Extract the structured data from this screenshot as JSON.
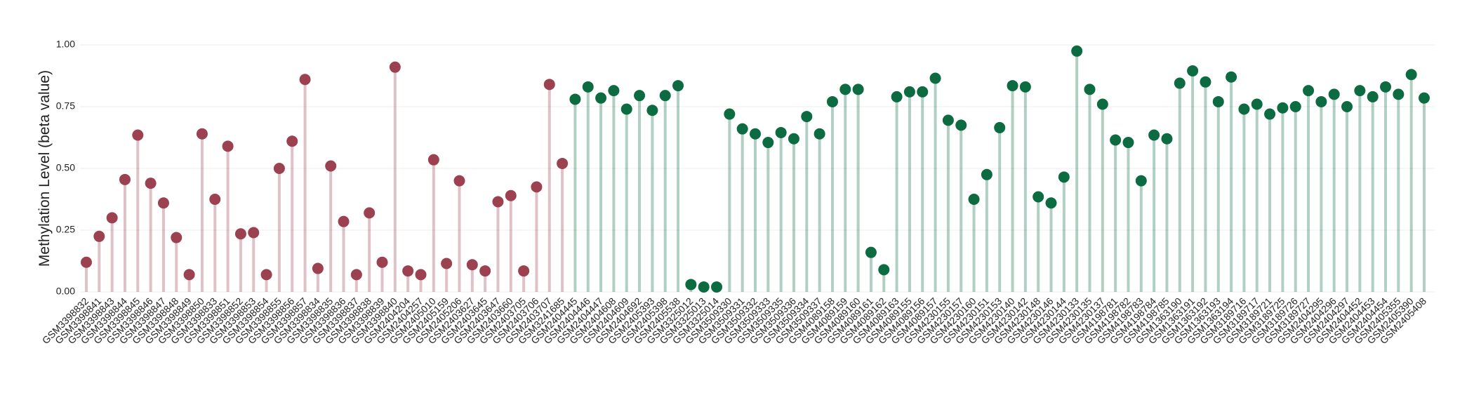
{
  "chart_data": {
    "type": "lollipop",
    "y_label": "Methylation Level (beta value)",
    "categories": [
      "GSM3398832",
      "GSM3398841",
      "GSM3398843",
      "GSM3398844",
      "GSM3398845",
      "GSM3398846",
      "GSM3398847",
      "GSM3398848",
      "GSM3398849",
      "GSM3398850",
      "GSM3398833",
      "GSM3398851",
      "GSM3398852",
      "GSM3398853",
      "GSM3398854",
      "GSM3398855",
      "GSM3398856",
      "GSM3398857",
      "GSM3398834",
      "GSM3398835",
      "GSM3398836",
      "GSM3398837",
      "GSM3398838",
      "GSM3398839",
      "GSM3398840",
      "GSM2404204",
      "GSM2404257",
      "GSM2405010",
      "GSM2405159",
      "GSM2405206",
      "GSM2403627",
      "GSM2403645",
      "GSM2403647",
      "GSM2403660",
      "GSM2403705",
      "GSM2403706",
      "GSM2403707",
      "GSM3241685",
      "GSM2404445",
      "GSM2404446",
      "GSM2404447",
      "GSM2404608",
      "GSM2404609",
      "GSM2404692",
      "GSM2405393",
      "GSM2405398",
      "GSM2405538",
      "GSM3325012",
      "GSM3325013",
      "GSM3325014",
      "GSM3509330",
      "GSM3509331",
      "GSM3509332",
      "GSM3509333",
      "GSM3509335",
      "GSM3509336",
      "GSM3509334",
      "GSM3509337",
      "GSM4089158",
      "GSM4089159",
      "GSM4089160",
      "GSM4089161",
      "GSM4089162",
      "GSM4089163",
      "GSM4089155",
      "GSM4089156",
      "GSM4089157",
      "GSM4230155",
      "GSM4230157",
      "GSM4230160",
      "GSM4230151",
      "GSM4230153",
      "GSM4230140",
      "GSM4230142",
      "GSM4230148",
      "GSM4230146",
      "GSM4230144",
      "GSM4230133",
      "GSM4230135",
      "GSM4230137",
      "GSM4198781",
      "GSM4198782",
      "GSM4198783",
      "GSM4198784",
      "GSM4198785",
      "GSM1363190",
      "GSM1363191",
      "GSM1363192",
      "GSM1363193",
      "GSM1363194",
      "GSM3189716",
      "GSM3189717",
      "GSM3189721",
      "GSM3189725",
      "GSM3189726",
      "GSM3189727",
      "GSM2404295",
      "GSM2404296",
      "GSM2404297",
      "GSM2404452",
      "GSM2404453",
      "GSM2404454",
      "GSM2405355",
      "GSM2405390",
      "GSM2405408"
    ],
    "values": [
      0.12,
      0.225,
      0.3,
      0.455,
      0.635,
      0.44,
      0.36,
      0.22,
      0.07,
      0.64,
      0.375,
      0.59,
      0.235,
      0.24,
      0.07,
      0.5,
      0.61,
      0.86,
      0.095,
      0.51,
      0.285,
      0.07,
      0.32,
      0.12,
      0.91,
      0.085,
      0.07,
      0.535,
      0.115,
      0.45,
      0.11,
      0.085,
      0.365,
      0.39,
      0.085,
      0.425,
      0.84,
      0.52,
      0.78,
      0.83,
      0.785,
      0.815,
      0.74,
      0.795,
      0.735,
      0.795,
      0.835,
      0.03,
      0.02,
      0.02,
      0.72,
      0.66,
      0.64,
      0.605,
      0.645,
      0.62,
      0.71,
      0.64,
      0.77,
      0.82,
      0.82,
      0.16,
      0.09,
      0.79,
      0.81,
      0.81,
      0.865,
      0.695,
      0.675,
      0.375,
      0.475,
      0.665,
      0.835,
      0.83,
      0.385,
      0.36,
      0.465,
      0.975,
      0.82,
      0.76,
      0.615,
      0.605,
      0.45,
      0.635,
      0.62,
      0.845,
      0.895,
      0.85,
      0.77,
      0.87,
      0.74,
      0.76,
      0.72,
      0.745,
      0.75,
      0.815,
      0.77,
      0.8,
      0.75,
      0.815,
      0.79,
      0.83,
      0.8,
      0.88,
      0.785
    ],
    "colors": [
      "#9b4150",
      "#9b4150",
      "#9b4150",
      "#9b4150",
      "#9b4150",
      "#9b4150",
      "#9b4150",
      "#9b4150",
      "#9b4150",
      "#9b4150",
      "#9b4150",
      "#9b4150",
      "#9b4150",
      "#9b4150",
      "#9b4150",
      "#9b4150",
      "#9b4150",
      "#9b4150",
      "#9b4150",
      "#9b4150",
      "#9b4150",
      "#9b4150",
      "#9b4150",
      "#9b4150",
      "#9b4150",
      "#9b4150",
      "#9b4150",
      "#9b4150",
      "#9b4150",
      "#9b4150",
      "#9b4150",
      "#9b4150",
      "#9b4150",
      "#9b4150",
      "#9b4150",
      "#9b4150",
      "#9b4150",
      "#9b4150",
      "#0d6b42",
      "#0d6b42",
      "#0d6b42",
      "#0d6b42",
      "#0d6b42",
      "#0d6b42",
      "#0d6b42",
      "#0d6b42",
      "#0d6b42",
      "#0d6b42",
      "#0d6b42",
      "#0d6b42",
      "#0d6b42",
      "#0d6b42",
      "#0d6b42",
      "#0d6b42",
      "#0d6b42",
      "#0d6b42",
      "#0d6b42",
      "#0d6b42",
      "#0d6b42",
      "#0d6b42",
      "#0d6b42",
      "#0d6b42",
      "#0d6b42",
      "#0d6b42",
      "#0d6b42",
      "#0d6b42",
      "#0d6b42",
      "#0d6b42",
      "#0d6b42",
      "#0d6b42",
      "#0d6b42",
      "#0d6b42",
      "#0d6b42",
      "#0d6b42",
      "#0d6b42",
      "#0d6b42",
      "#0d6b42",
      "#0d6b42",
      "#0d6b42",
      "#0d6b42",
      "#0d6b42",
      "#0d6b42",
      "#0d6b42",
      "#0d6b42",
      "#0d6b42",
      "#0d6b42",
      "#0d6b42",
      "#0d6b42",
      "#0d6b42",
      "#0d6b42",
      "#0d6b42",
      "#0d6b42",
      "#0d6b42",
      "#0d6b42",
      "#0d6b42",
      "#0d6b42",
      "#0d6b42",
      "#0d6b42",
      "#0d6b42",
      "#0d6b42",
      "#0d6b42",
      "#0d6b42",
      "#0d6b42",
      "#0d6b42",
      "#0d6b42"
    ],
    "ylim": [
      0,
      1
    ],
    "yticks": [
      {
        "value": 0,
        "label": "0.00"
      },
      {
        "value": 0.25,
        "label": "0.25"
      },
      {
        "value": 0.5,
        "label": "0.50"
      },
      {
        "value": 0.75,
        "label": "0.75"
      },
      {
        "value": 1,
        "label": "1.00"
      }
    ],
    "grid": true
  }
}
